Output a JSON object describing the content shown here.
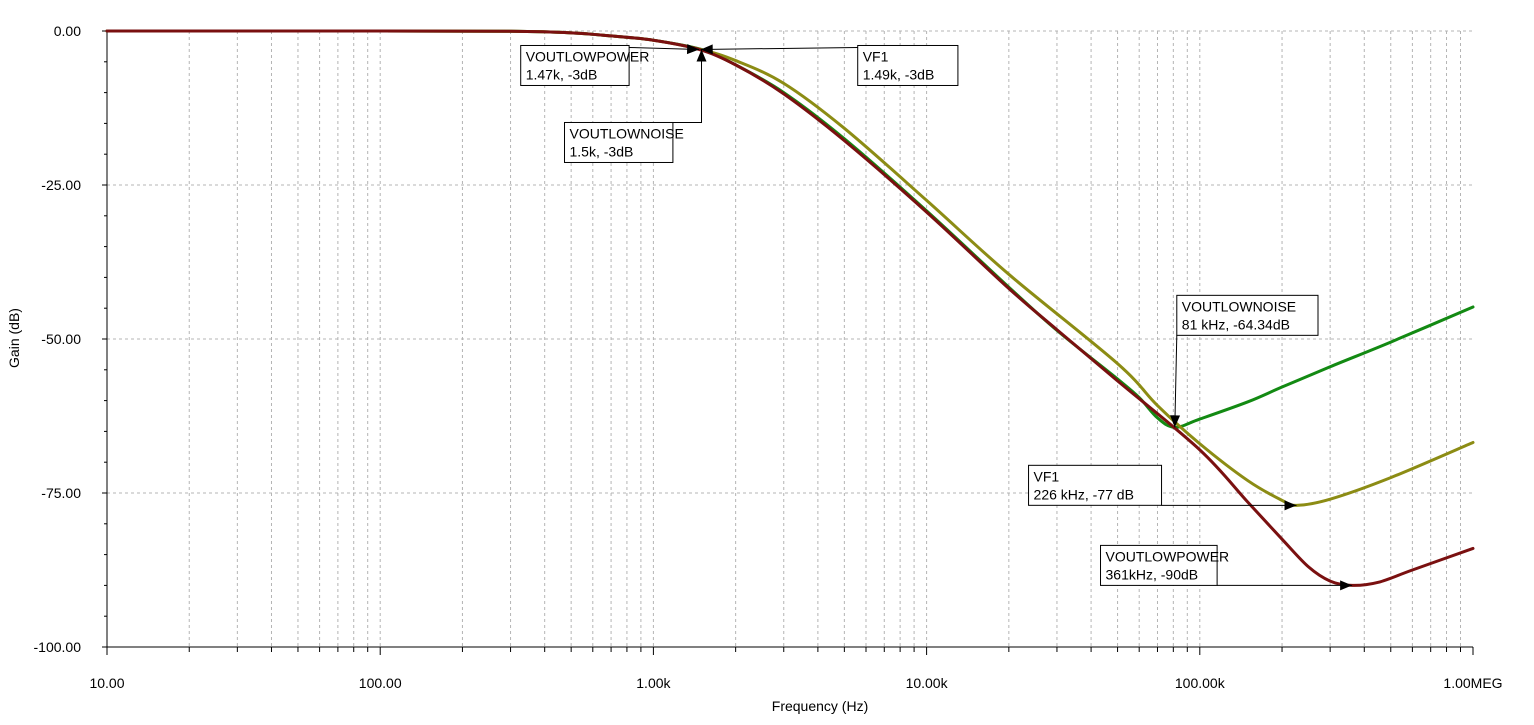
{
  "chart_data": {
    "type": "line",
    "title": "",
    "xlabel": "Frequency (Hz)",
    "ylabel": "Gain (dB)",
    "x_scale": "log",
    "xlim": [
      10,
      1000000
    ],
    "ylim": [
      -100,
      0
    ],
    "grid": true,
    "x_ticks": [
      {
        "value": 10,
        "label": "10.00"
      },
      {
        "value": 100,
        "label": "100.00"
      },
      {
        "value": 1000,
        "label": "1.00k"
      },
      {
        "value": 10000,
        "label": "10.00k"
      },
      {
        "value": 100000,
        "label": "100.00k"
      },
      {
        "value": 1000000,
        "label": "1.00MEG"
      }
    ],
    "y_ticks": [
      {
        "value": 0,
        "label": "0.00"
      },
      {
        "value": -25,
        "label": "-25.00"
      },
      {
        "value": -50,
        "label": "-50.00"
      },
      {
        "value": -75,
        "label": "-75.00"
      },
      {
        "value": -100,
        "label": "-100.00"
      }
    ],
    "series": [
      {
        "name": "VOUTLOWNOISE",
        "color": "#138a13",
        "points": [
          [
            10,
            0
          ],
          [
            100,
            0
          ],
          [
            300,
            -0.05
          ],
          [
            500,
            -0.3
          ],
          [
            700,
            -0.8
          ],
          [
            1000,
            -1.5
          ],
          [
            1500,
            -3
          ],
          [
            2000,
            -5.5
          ],
          [
            3000,
            -10
          ],
          [
            5000,
            -17.5
          ],
          [
            10000,
            -29.2
          ],
          [
            20000,
            -41.6
          ],
          [
            30000,
            -48.6
          ],
          [
            50000,
            -56.5
          ],
          [
            60000,
            -59.5
          ],
          [
            70000,
            -62.8
          ],
          [
            81000,
            -64.34
          ],
          [
            100000,
            -63.0
          ],
          [
            150000,
            -60.2
          ],
          [
            200000,
            -57.8
          ],
          [
            300000,
            -54.5
          ],
          [
            500000,
            -50.5
          ],
          [
            1000000,
            -44.8
          ]
        ]
      },
      {
        "name": "VF1",
        "color": "#8c8c14",
        "points": [
          [
            10,
            0
          ],
          [
            100,
            0
          ],
          [
            300,
            -0.05
          ],
          [
            500,
            -0.3
          ],
          [
            700,
            -0.8
          ],
          [
            1000,
            -1.5
          ],
          [
            1490,
            -3
          ],
          [
            2000,
            -4.8
          ],
          [
            3000,
            -8.5
          ],
          [
            5000,
            -15.8
          ],
          [
            10000,
            -27.5
          ],
          [
            20000,
            -39.5
          ],
          [
            50000,
            -54.0
          ],
          [
            70000,
            -60.8
          ],
          [
            100000,
            -67.0
          ],
          [
            150000,
            -73.0
          ],
          [
            200000,
            -76.2
          ],
          [
            226000,
            -77
          ],
          [
            300000,
            -76.0
          ],
          [
            500000,
            -72.5
          ],
          [
            1000000,
            -66.8
          ]
        ]
      },
      {
        "name": "VOUTLOWPOWER",
        "color": "#7a1010",
        "points": [
          [
            10,
            0
          ],
          [
            100,
            0
          ],
          [
            300,
            -0.05
          ],
          [
            500,
            -0.3
          ],
          [
            700,
            -0.8
          ],
          [
            1000,
            -1.5
          ],
          [
            1470,
            -3
          ],
          [
            2000,
            -5.5
          ],
          [
            3000,
            -10.2
          ],
          [
            5000,
            -17.8
          ],
          [
            10000,
            -29.4
          ],
          [
            20000,
            -41.8
          ],
          [
            30000,
            -48.5
          ],
          [
            50000,
            -56.8
          ],
          [
            100000,
            -68.0
          ],
          [
            150000,
            -76.5
          ],
          [
            200000,
            -82.5
          ],
          [
            250000,
            -87.0
          ],
          [
            300000,
            -89.3
          ],
          [
            361000,
            -90
          ],
          [
            450000,
            -89.5
          ],
          [
            600000,
            -87.5
          ],
          [
            1000000,
            -84.0
          ]
        ]
      }
    ],
    "annotations": [
      {
        "series": "VOUTLOWPOWER",
        "line1": "VOUTLOWPOWER",
        "line2": "1.47k, -3dB",
        "x": 1470,
        "y": -3,
        "box_at": "upper-left"
      },
      {
        "series": "VF1",
        "line1": "VF1",
        "line2": "1.49k, -3dB",
        "x": 1490,
        "y": -3,
        "box_at": "upper-right"
      },
      {
        "series": "VOUTLOWNOISE",
        "line1": "VOUTLOWNOISE",
        "line2": "1.5k, -3dB",
        "x": 1500,
        "y": -3,
        "box_at": "below-left"
      },
      {
        "series": "VOUTLOWNOISE",
        "line1": "VOUTLOWNOISE",
        "line2": "81 kHz, -64.34dB",
        "x": 81000,
        "y": -64.34,
        "box_at": "above-right"
      },
      {
        "series": "VF1",
        "line1": "VF1",
        "line2": "226 kHz, -77 dB",
        "x": 226000,
        "y": -77,
        "box_at": "left"
      },
      {
        "series": "VOUTLOWPOWER",
        "line1": "VOUTLOWPOWER",
        "line2": "361kHz, -90dB",
        "x": 361000,
        "y": -90,
        "box_at": "left"
      }
    ]
  }
}
